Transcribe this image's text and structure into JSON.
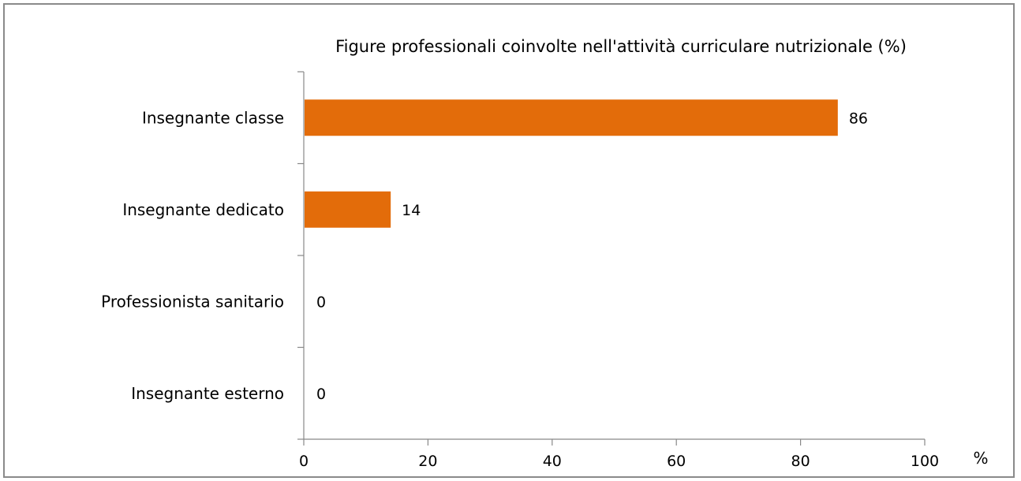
{
  "chart_data": {
    "type": "bar",
    "orientation": "horizontal",
    "title": "Figure professionali coinvolte nell'attività curriculare nutrizionale (%)",
    "categories": [
      "Insegnante classe",
      "Insegnante dedicato",
      "Professionista sanitario",
      "Insegnante esterno"
    ],
    "values": [
      86,
      14,
      0,
      0
    ],
    "xlim": [
      0,
      100
    ],
    "xticks": [
      0,
      20,
      40,
      60,
      80,
      100
    ],
    "xunit_label": "%",
    "bar_color": "#E36C0A",
    "grid": false,
    "legend": "none"
  }
}
